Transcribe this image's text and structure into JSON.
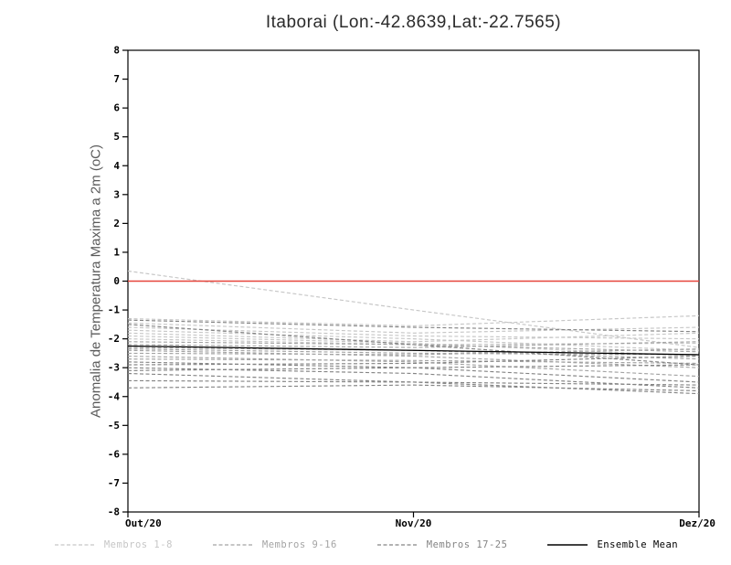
{
  "chart_data": {
    "type": "line",
    "title": "Itaborai (Lon:-42.8639,Lat:-22.7565)",
    "ylabel": "Anomalia de Temperatura Maxima a 2m (oC)",
    "xlabel": "",
    "ylim": [
      -8,
      8
    ],
    "ytick_step": 1,
    "x_categories": [
      "Out/20",
      "Nov/20",
      "Dez/20"
    ],
    "grid": false,
    "legend_position": "bottom",
    "zero_line": {
      "value": 0,
      "color": "#e6453c"
    },
    "frame_color": "#000000",
    "groups": [
      {
        "name": "Membros 1-8",
        "color": "#c6c6c6",
        "style": "dashed",
        "members": [
          [
            0.35,
            -1.0,
            -2.3
          ],
          [
            -1.3,
            -1.55,
            -1.2
          ],
          [
            -1.45,
            -1.8,
            -1.6
          ],
          [
            -1.6,
            -1.9,
            -2.0
          ],
          [
            -1.7,
            -2.0,
            -2.4
          ],
          [
            -1.8,
            -2.1,
            -1.8
          ],
          [
            -1.9,
            -2.15,
            -2.6
          ],
          [
            -2.0,
            -2.2,
            -2.15
          ]
        ]
      },
      {
        "name": "Membros 9-16",
        "color": "#a4a4a4",
        "style": "dashed",
        "members": [
          [
            -2.1,
            -2.2,
            -2.45
          ],
          [
            -2.2,
            -2.3,
            -2.1
          ],
          [
            -2.3,
            -2.4,
            -2.7
          ],
          [
            -2.35,
            -2.5,
            -2.55
          ],
          [
            -2.4,
            -2.6,
            -3.0
          ],
          [
            -2.5,
            -2.55,
            -2.35
          ],
          [
            -2.6,
            -2.8,
            -3.3
          ],
          [
            -2.7,
            -2.75,
            -2.85
          ]
        ]
      },
      {
        "name": "Membros 17-25",
        "color": "#848484",
        "style": "dashed",
        "members": [
          [
            -2.8,
            -3.0,
            -3.5
          ],
          [
            -2.9,
            -2.85,
            -2.6
          ],
          [
            -3.0,
            -3.2,
            -3.7
          ],
          [
            -3.1,
            -3.0,
            -2.9
          ],
          [
            -3.2,
            -3.5,
            -3.9
          ],
          [
            -3.45,
            -3.5,
            -3.6
          ],
          [
            -3.7,
            -3.6,
            -3.8
          ],
          [
            -1.35,
            -1.6,
            -1.75
          ],
          [
            -1.5,
            -2.2,
            -2.9
          ]
        ]
      }
    ],
    "mean": {
      "name": "Ensemble Mean",
      "color": "#000000",
      "style": "solid",
      "values": [
        -2.25,
        -2.4,
        -2.55
      ]
    },
    "legend": [
      {
        "label": "Membros 1-8",
        "color": "#c6c6c6",
        "dashed": true
      },
      {
        "label": "Membros 9-16",
        "color": "#a4a4a4",
        "dashed": true
      },
      {
        "label": "Membros 17-25",
        "color": "#848484",
        "dashed": true
      },
      {
        "label": "Ensemble Mean",
        "color": "#000000",
        "dashed": false
      }
    ]
  }
}
